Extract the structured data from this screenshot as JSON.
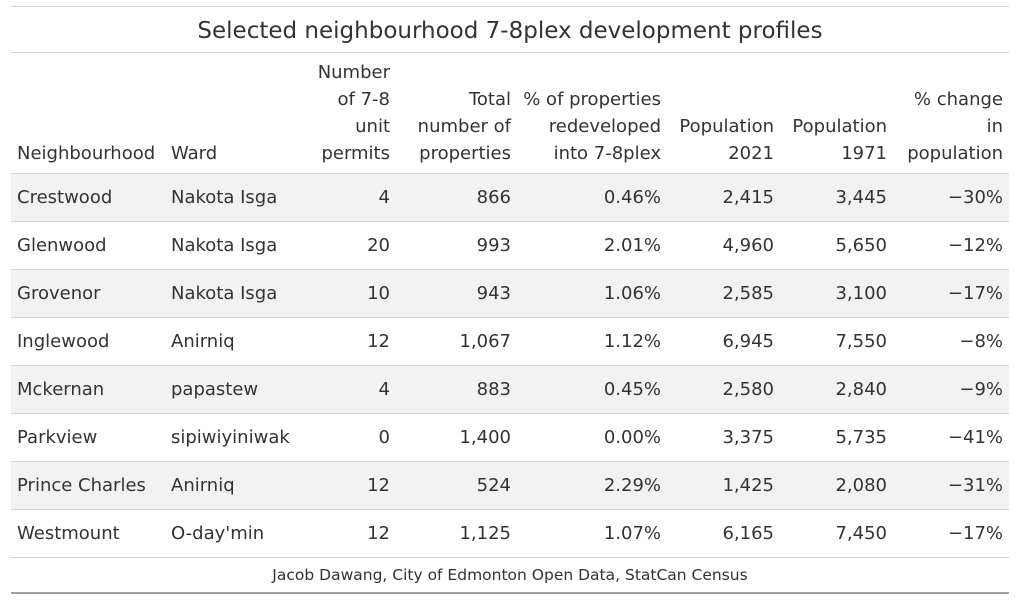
{
  "title": "Selected neighbourhood 7-8plex development profiles",
  "columns": [
    "Neighbourhood",
    "Ward",
    "Number of 7-8 unit permits",
    "Total number of properties",
    "% of properties redeveloped into 7-8plex",
    "Population 2021",
    "Population 1971",
    "% change in population"
  ],
  "rows": [
    [
      "Crestwood",
      "Nakota Isga",
      "4",
      "866",
      "0.46%",
      "2,415",
      "3,445",
      "−30%"
    ],
    [
      "Glenwood",
      "Nakota Isga",
      "20",
      "993",
      "2.01%",
      "4,960",
      "5,650",
      "−12%"
    ],
    [
      "Grovenor",
      "Nakota Isga",
      "10",
      "943",
      "1.06%",
      "2,585",
      "3,100",
      "−17%"
    ],
    [
      "Inglewood",
      "Anirniq",
      "12",
      "1,067",
      "1.12%",
      "6,945",
      "7,550",
      "−8%"
    ],
    [
      "Mckernan",
      "papastew",
      "4",
      "883",
      "0.45%",
      "2,580",
      "2,840",
      "−9%"
    ],
    [
      "Parkview",
      "sipiwiyiniwak",
      "0",
      "1,400",
      "0.00%",
      "3,375",
      "5,735",
      "−41%"
    ],
    [
      "Prince Charles",
      "Anirniq",
      "12",
      "524",
      "2.29%",
      "1,425",
      "2,080",
      "−31%"
    ],
    [
      "Westmount",
      "O-day'min",
      "12",
      "1,125",
      "1.07%",
      "6,165",
      "7,450",
      "−17%"
    ]
  ],
  "source": "Jacob Dawang, City of Edmonton Open Data, StatCan Census"
}
